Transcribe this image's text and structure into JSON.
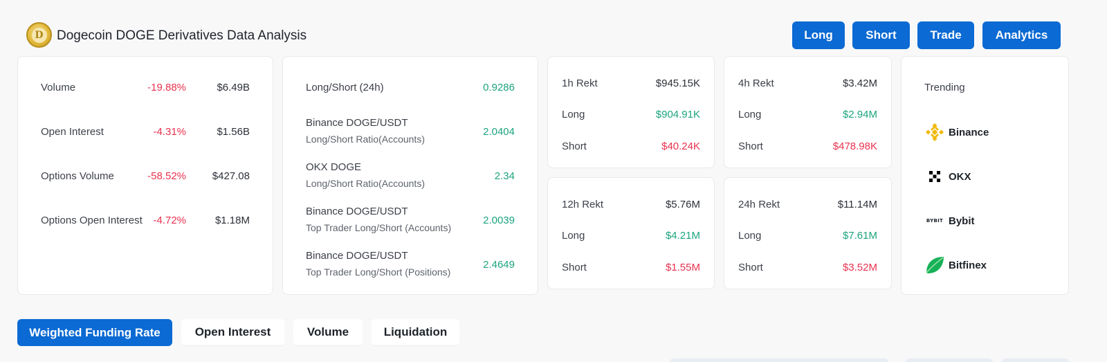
{
  "header": {
    "logo_letter": "D",
    "title": "Dogecoin DOGE Derivatives Data Analysis",
    "buttons": [
      "Long",
      "Short",
      "Trade",
      "Analytics"
    ]
  },
  "overview": [
    {
      "label": "Volume",
      "change": "-19.88%",
      "value": "$6.49B"
    },
    {
      "label": "Open Interest",
      "change": "-4.31%",
      "value": "$1.56B"
    },
    {
      "label": "Options Volume",
      "change": "-58.52%",
      "value": "$427.08"
    },
    {
      "label": "Options Open Interest",
      "change": "-4.72%",
      "value": "$1.18M"
    }
  ],
  "ratios": [
    {
      "label": "Long/Short (24h)",
      "sub": "",
      "value": "0.9286"
    },
    {
      "label": "Binance DOGE/USDT",
      "sub": "Long/Short Ratio(Accounts)",
      "value": "2.0404"
    },
    {
      "label": "OKX DOGE",
      "sub": "Long/Short Ratio(Accounts)",
      "value": "2.34"
    },
    {
      "label": "Binance DOGE/USDT",
      "sub": "Top Trader Long/Short (Accounts)",
      "value": "2.0039"
    },
    {
      "label": "Binance DOGE/USDT",
      "sub": "Top Trader Long/Short (Positions)",
      "value": "2.4649"
    }
  ],
  "rekt": [
    {
      "period": "1h Rekt",
      "total": "$945.15K",
      "long_label": "Long",
      "long": "$904.91K",
      "short_label": "Short",
      "short": "$40.24K"
    },
    {
      "period": "4h Rekt",
      "total": "$3.42M",
      "long_label": "Long",
      "long": "$2.94M",
      "short_label": "Short",
      "short": "$478.98K"
    },
    {
      "period": "12h Rekt",
      "total": "$5.76M",
      "long_label": "Long",
      "long": "$4.21M",
      "short_label": "Short",
      "short": "$1.55M"
    },
    {
      "period": "24h Rekt",
      "total": "$11.14M",
      "long_label": "Long",
      "long": "$7.61M",
      "short_label": "Short",
      "short": "$3.52M"
    }
  ],
  "trending": {
    "title": "Trending",
    "items": [
      {
        "name": "Binance",
        "icon": "binance-icon",
        "color": "#f0b90b"
      },
      {
        "name": "OKX",
        "icon": "okx-icon",
        "color": "#000000"
      },
      {
        "name": "Bybit",
        "icon": "bybit-icon",
        "color": "#1e2329",
        "icon_text": "BYBIT"
      },
      {
        "name": "Bitfinex",
        "icon": "bitfinex-icon",
        "color": "#16b157"
      }
    ]
  },
  "tabs": [
    "Weighted Funding Rate",
    "Open Interest",
    "Volume",
    "Liquidation"
  ],
  "colors": {
    "accent": "#0b6ad3",
    "positive": "#1ba47e",
    "negative": "#e8324f"
  }
}
